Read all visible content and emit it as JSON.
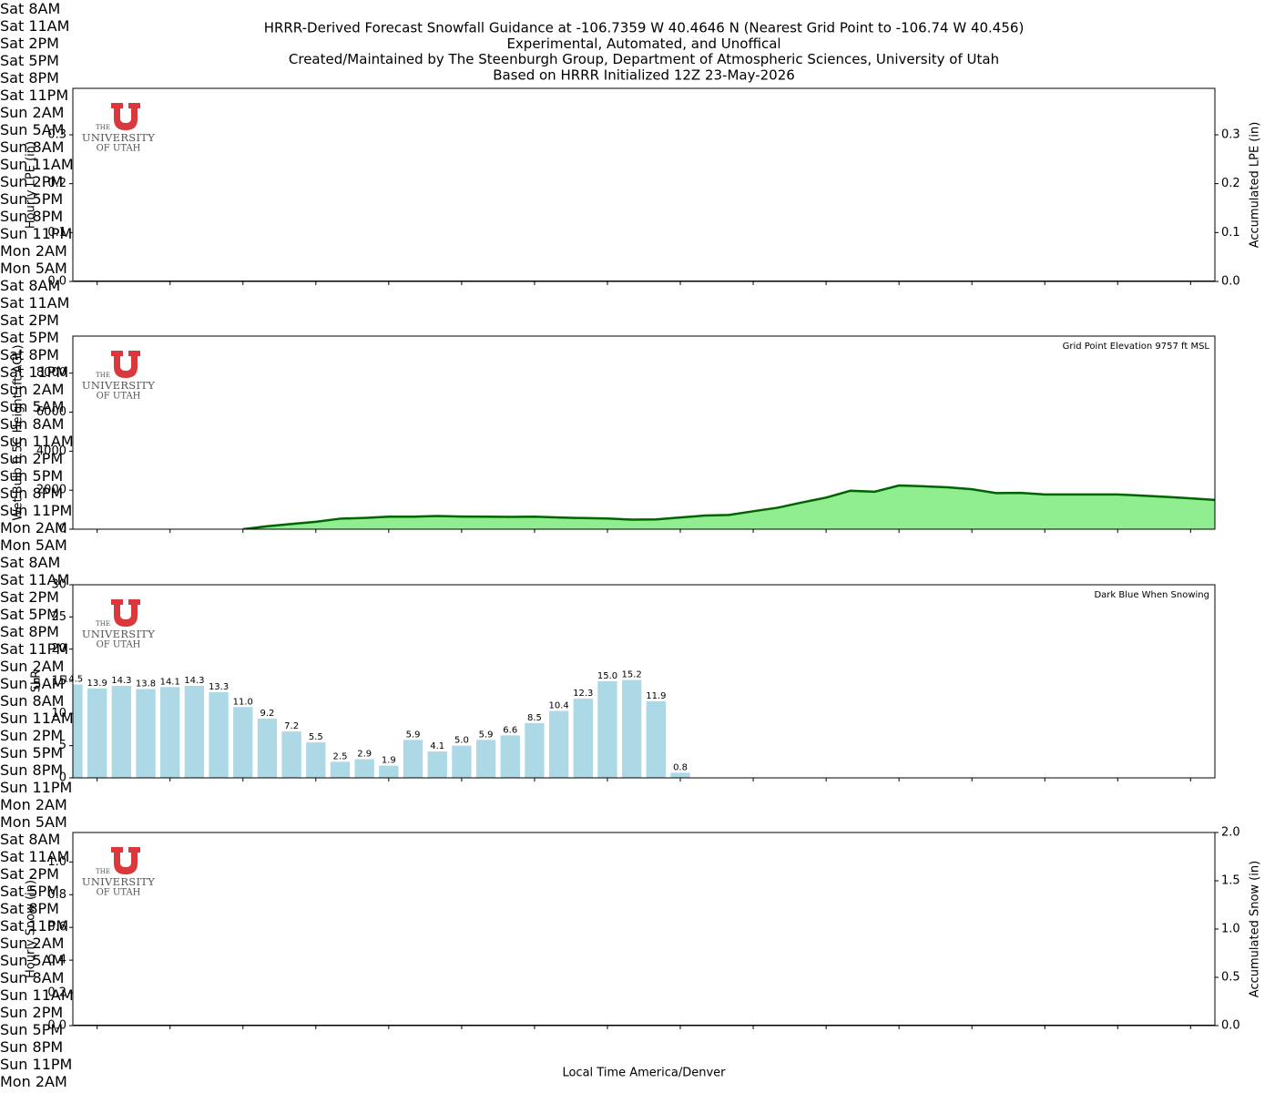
{
  "title": [
    "HRRR-Derived Forecast Snowfall Guidance at -106.7359 W 40.4646 N (Nearest Grid Point to -106.74 W 40.456)",
    "Experimental, Automated, and Unoffical",
    "Created/Maintained by The Steenburgh Group, Department of Atmospheric Sciences, University of Utah",
    "Based on HRRR Initialized 12Z 23-May-2026"
  ],
  "chart_data": [
    {
      "type": "bar_line",
      "ylabel": "Hourly LPE (in)",
      "y2label": "Accumulated LPE (in)",
      "logo": [
        "THE",
        "UNIVERSITY",
        "OF UTAH"
      ],
      "categories": [
        null,
        "Sat\n8AM",
        null,
        null,
        "Sat\n11AM",
        null,
        null,
        "Sat\n2PM",
        null,
        null,
        "Sat\n5PM",
        null,
        null,
        "Sat\n8PM",
        null,
        null,
        "Sat\n11PM",
        null,
        null,
        "Sun\n2AM",
        null,
        null,
        "Sun\n5AM",
        null,
        null,
        "Sun\n8AM",
        null,
        null,
        "Sun\n11AM",
        null,
        null,
        "Sun\n2PM",
        null,
        null,
        "Sun\n5PM",
        null,
        null,
        "Sun\n8PM",
        null,
        null,
        "Sun\n11PM",
        null,
        null,
        "Mon\n2AM",
        null,
        null,
        "Mon\n5AM",
        null
      ],
      "series": [
        {
          "color": "#1f77b4",
          "values": [
            0,
            0,
            0,
            0,
            0,
            0,
            0,
            0,
            0,
            0,
            0,
            0,
            0,
            0,
            0,
            0,
            0,
            0,
            0,
            0,
            0,
            0,
            0,
            0,
            0,
            0,
            0,
            0,
            0,
            0,
            0,
            0,
            0,
            0,
            0,
            0,
            0,
            0,
            0,
            0,
            0,
            0,
            0,
            0,
            0,
            0,
            0,
            0
          ]
        },
        {
          "color": "#000000",
          "axis": "y2",
          "values": [
            0,
            0,
            0,
            0,
            0,
            0,
            0,
            0,
            0,
            0,
            0,
            0,
            0,
            0,
            0,
            0,
            0,
            0,
            0,
            0,
            0,
            0,
            0,
            0,
            0,
            0,
            0,
            0,
            0,
            0,
            0,
            0,
            0,
            0,
            0,
            0,
            0,
            0,
            0,
            0,
            0,
            0,
            0,
            0,
            0,
            0,
            0,
            0
          ]
        }
      ],
      "ylim": [
        0,
        0.395
      ],
      "yticks": [
        {
          "value": 0,
          "label": "0.0"
        },
        0.1,
        0.2,
        0.3
      ],
      "y2lim": [
        0,
        0.395
      ],
      "y2ticks": [
        {
          "value": 0,
          "label": "0.0"
        },
        0.1,
        0.2,
        0.3
      ]
    },
    {
      "type": "area",
      "ylabel": "Wet Bulb 0.5C Height (ft AGL)",
      "annotation": "Grid Point Elevation 9757 ft MSL",
      "logo": [
        "THE",
        "UNIVERSITY",
        "OF UTAH"
      ],
      "categories": [
        null,
        "Sat\n8AM",
        null,
        null,
        "Sat\n11AM",
        null,
        null,
        "Sat\n2PM",
        null,
        null,
        "Sat\n5PM",
        null,
        null,
        "Sat\n8PM",
        null,
        null,
        "Sat\n11PM",
        null,
        null,
        "Sun\n2AM",
        null,
        null,
        "Sun\n5AM",
        null,
        null,
        "Sun\n8AM",
        null,
        null,
        "Sun\n11AM",
        null,
        null,
        "Sun\n2PM",
        null,
        null,
        "Sun\n5PM",
        null,
        null,
        "Sun\n8PM",
        null,
        null,
        "Sun\n11PM",
        null,
        null,
        "Mon\n2AM",
        null,
        null,
        "Mon\n5AM",
        null
      ],
      "values": [
        null,
        null,
        null,
        null,
        null,
        null,
        null,
        0,
        150,
        270,
        380,
        540,
        580,
        640,
        640,
        680,
        650,
        640,
        630,
        640,
        600,
        570,
        550,
        490,
        500,
        600,
        700,
        730,
        920,
        1100,
        1370,
        1620,
        1970,
        1920,
        2240,
        2200,
        2150,
        2050,
        1850,
        1860,
        1780,
        1780,
        1780,
        1780,
        1720,
        1660,
        1580,
        1500
      ],
      "color": "#006400",
      "fill": "#90ee90",
      "ylim": [
        0,
        9900
      ],
      "yticks": [
        0,
        2000,
        4000,
        6000,
        8000
      ]
    },
    {
      "type": "bar",
      "ylabel": "SLR",
      "annotation": "Dark Blue When Snowing",
      "logo": [
        "THE",
        "UNIVERSITY",
        "OF UTAH"
      ],
      "categories": [
        null,
        "Sat\n8AM",
        null,
        null,
        "Sat\n11AM",
        null,
        null,
        "Sat\n2PM",
        null,
        null,
        "Sat\n5PM",
        null,
        null,
        "Sat\n8PM",
        null,
        null,
        "Sat\n11PM",
        null,
        null,
        "Sun\n2AM",
        null,
        null,
        "Sun\n5AM",
        null,
        null,
        "Sun\n8AM",
        null,
        null,
        "Sun\n11AM",
        null,
        null,
        "Sun\n2PM",
        null,
        null,
        "Sun\n5PM",
        null,
        null,
        "Sun\n8PM",
        null,
        null,
        "Sun\n11PM",
        null,
        null,
        "Mon\n2AM",
        null,
        null,
        "Mon\n5AM",
        null
      ],
      "values": [
        14.5,
        13.9,
        14.3,
        13.8,
        14.1,
        14.3,
        13.3,
        11.0,
        9.2,
        7.2,
        5.5,
        2.5,
        2.9,
        1.9,
        5.9,
        4.1,
        5.0,
        5.9,
        6.6,
        8.5,
        10.4,
        12.3,
        15.0,
        15.2,
        11.9,
        0.8,
        null,
        null,
        null,
        null,
        null,
        null,
        null,
        null,
        null,
        null,
        null,
        null,
        null,
        null,
        null,
        null,
        null,
        null,
        null,
        null,
        null,
        null
      ],
      "value_labels": [
        "14.5",
        "13.9",
        "14.3",
        "13.8",
        "14.1",
        "14.3",
        "13.3",
        "11.0",
        "9.2",
        "7.2",
        "5.5",
        "2.5",
        "2.9",
        "1.9",
        "5.9",
        "4.1",
        "5.0",
        "5.9",
        "6.6",
        "8.5",
        "10.4",
        "12.3",
        "15.0",
        "15.2",
        "11.9",
        "0.8",
        null,
        null,
        null,
        null,
        null,
        null,
        null,
        null,
        null,
        null,
        null,
        null,
        null,
        null,
        null,
        null,
        null,
        null,
        null,
        null,
        null,
        null
      ],
      "color": "#add8e6",
      "ylim": [
        0,
        30
      ],
      "yticks": [
        0,
        5,
        10,
        15,
        20,
        25,
        30
      ]
    },
    {
      "type": "bar_line",
      "ylabel": "Hourly Snow (in)",
      "y2label": "Accumulated Snow (in)",
      "xlabel": "Local Time America/Denver",
      "logo": [
        "THE",
        "UNIVERSITY",
        "OF UTAH"
      ],
      "categories": [
        null,
        "Sat\n8AM",
        null,
        null,
        "Sat\n11AM",
        null,
        null,
        "Sat\n2PM",
        null,
        null,
        "Sat\n5PM",
        null,
        null,
        "Sat\n8PM",
        null,
        null,
        "Sat\n11PM",
        null,
        null,
        "Sun\n2AM",
        null,
        null,
        "Sun\n5AM",
        null,
        null,
        "Sun\n8AM",
        null,
        null,
        "Sun\n11AM",
        null,
        null,
        "Sun\n2PM",
        null,
        null,
        "Sun\n5PM",
        null,
        null,
        "Sun\n8PM",
        null,
        null,
        "Sun\n11PM",
        null,
        null,
        "Mon\n2AM",
        null,
        null,
        "Mon\n5AM",
        null
      ],
      "series": [
        {
          "color": "#1f77b4",
          "values": [
            0,
            0,
            0,
            0,
            0,
            0,
            0,
            0,
            0,
            0,
            0,
            0,
            0,
            0,
            0,
            0,
            0,
            0,
            0,
            0,
            0,
            0,
            0,
            0,
            0,
            0,
            0,
            0,
            0,
            0,
            0,
            0,
            0,
            0,
            0,
            0,
            0,
            0,
            0,
            0,
            0,
            0,
            0,
            0,
            0,
            0,
            0,
            0
          ]
        },
        {
          "color": "#000000",
          "axis": "y2",
          "values": [
            0,
            0,
            0,
            0,
            0,
            0,
            0,
            0,
            0,
            0,
            0,
            0,
            0,
            0,
            0,
            0,
            0,
            0,
            0,
            0,
            0,
            0,
            0,
            0,
            0,
            0,
            0,
            0,
            0,
            0,
            0,
            0,
            0,
            0,
            0,
            0,
            0,
            0,
            0,
            0,
            0,
            0,
            0,
            0,
            0,
            0,
            0,
            0
          ]
        }
      ],
      "ylim": [
        0,
        1.18
      ],
      "yticks": [
        {
          "value": 0,
          "label": "0.0"
        },
        0.2,
        0.4,
        0.6,
        0.8,
        {
          "value": 1,
          "label": "1.0"
        }
      ],
      "y2lim": [
        0,
        2
      ],
      "y2ticks": [
        {
          "value": 0,
          "label": "0.0"
        },
        0.5,
        {
          "value": 1,
          "label": "1.0"
        },
        1.5,
        {
          "value": 2,
          "label": "2.0"
        }
      ]
    }
  ]
}
